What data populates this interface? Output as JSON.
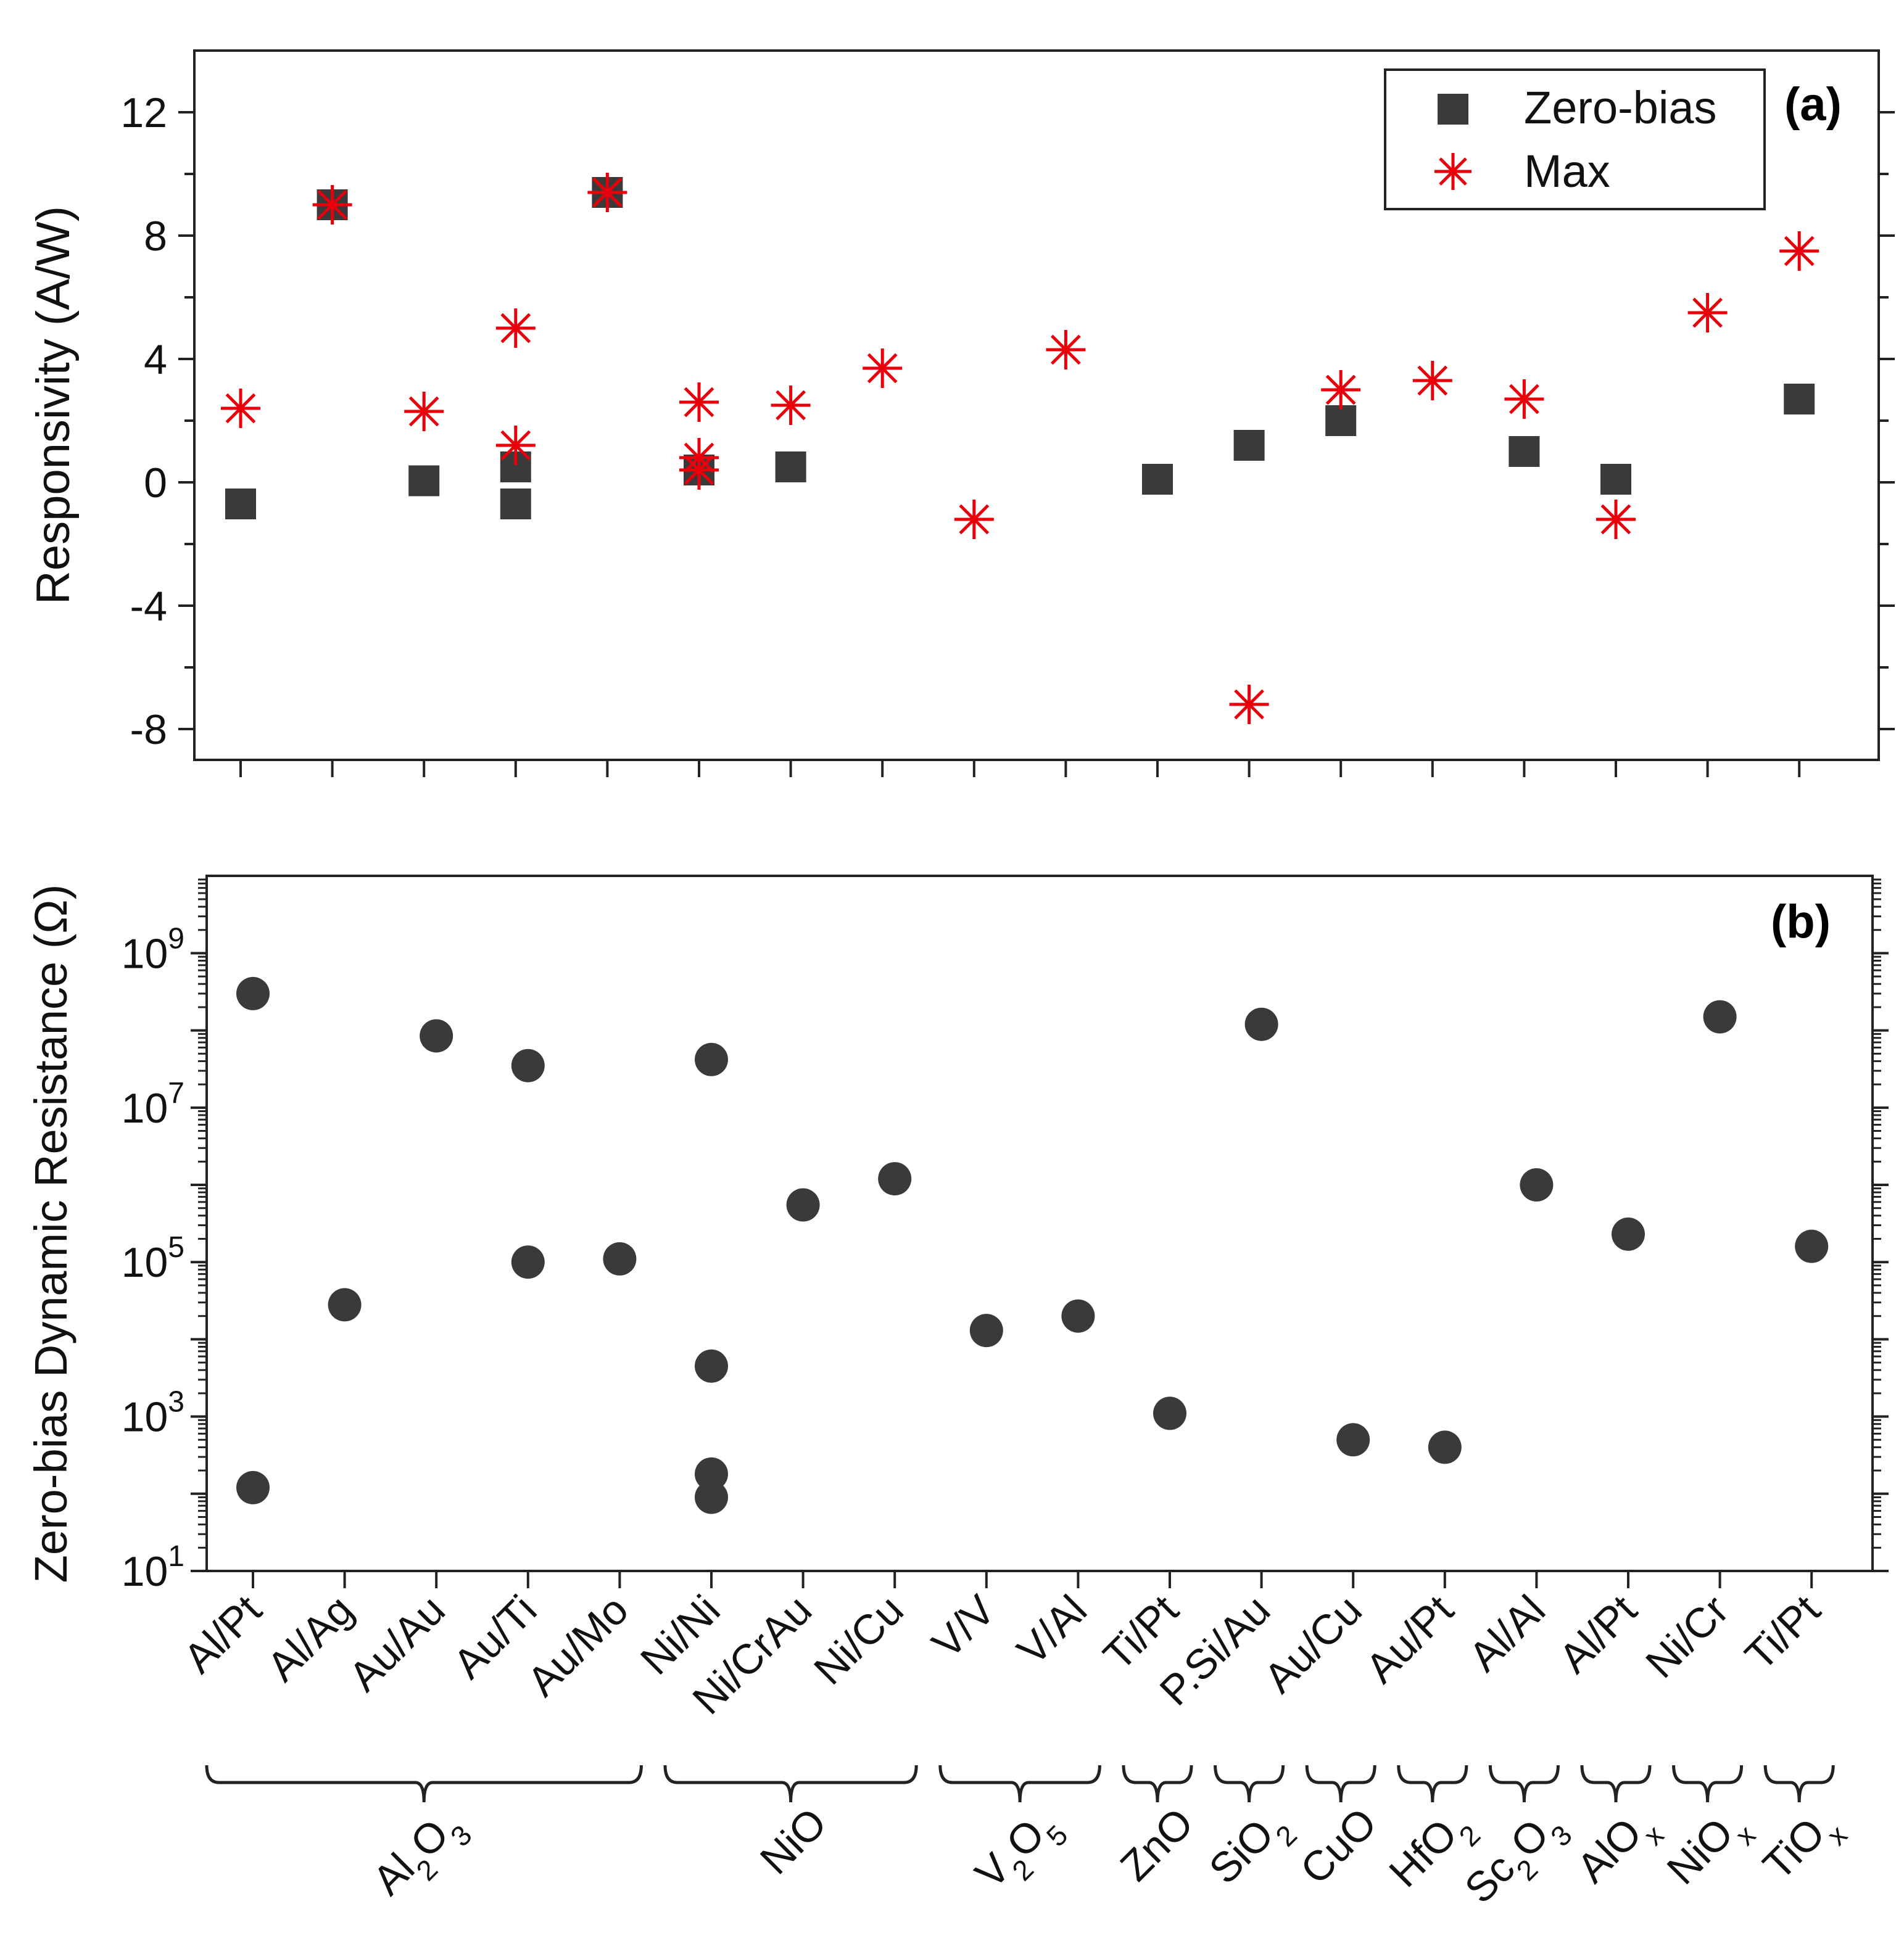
{
  "chart_data": [
    {
      "type": "scatter",
      "panel": "(a)",
      "ylabel": "Responsivity (A/W)",
      "ylim": [
        -9,
        14
      ],
      "yticks": [
        -8,
        -4,
        0,
        4,
        8,
        12
      ],
      "ytick_labels": [
        "-8",
        "-4",
        "0",
        "4",
        "8",
        "12"
      ],
      "legend": {
        "position": "top-right",
        "entries": [
          "Zero-bias",
          "Max"
        ]
      },
      "series": [
        {
          "name": "Zero-bias",
          "marker": "square",
          "color": "#3a3a3a",
          "points": [
            {
              "x": 0,
              "y": -0.7
            },
            {
              "x": 1,
              "y": 9.0
            },
            {
              "x": 2,
              "y": 0.05
            },
            {
              "x": 3,
              "y": 0.5
            },
            {
              "x": 3,
              "y": -0.7
            },
            {
              "x": 4,
              "y": 9.4
            },
            {
              "x": 5,
              "y": 0.4
            },
            {
              "x": 6,
              "y": 0.5
            },
            {
              "x": 10,
              "y": 0.1
            },
            {
              "x": 11,
              "y": 1.2
            },
            {
              "x": 12,
              "y": 2.0
            },
            {
              "x": 14,
              "y": 1.0
            },
            {
              "x": 15,
              "y": 0.1
            },
            {
              "x": 17,
              "y": 2.7
            }
          ]
        },
        {
          "name": "Max",
          "marker": "asterisk",
          "color": "#e8000b",
          "points": [
            {
              "x": 0,
              "y": 2.4
            },
            {
              "x": 1,
              "y": 9.0
            },
            {
              "x": 2,
              "y": 2.3
            },
            {
              "x": 3,
              "y": 5.0
            },
            {
              "x": 3,
              "y": 1.2
            },
            {
              "x": 4,
              "y": 9.4
            },
            {
              "x": 5,
              "y": 2.6
            },
            {
              "x": 5,
              "y": 0.8
            },
            {
              "x": 5,
              "y": 0.4
            },
            {
              "x": 6,
              "y": 2.5
            },
            {
              "x": 7,
              "y": 3.7
            },
            {
              "x": 8,
              "y": -1.2
            },
            {
              "x": 9,
              "y": 4.3
            },
            {
              "x": 11,
              "y": -7.2
            },
            {
              "x": 12,
              "y": 3.0
            },
            {
              "x": 13,
              "y": 3.3
            },
            {
              "x": 14,
              "y": 2.7
            },
            {
              "x": 15,
              "y": -1.2
            },
            {
              "x": 16,
              "y": 5.5
            },
            {
              "x": 17,
              "y": 7.5
            }
          ]
        }
      ]
    },
    {
      "type": "scatter",
      "panel": "(b)",
      "ylabel": "Zero-bias Dynamic Resistance (Ω)",
      "yscale": "log",
      "ylim_log10": [
        1,
        10
      ],
      "yticks_log10": [
        1,
        3,
        5,
        7,
        9
      ],
      "ytick_labels": [
        {
          "base": "10",
          "exp": "1"
        },
        {
          "base": "10",
          "exp": "3"
        },
        {
          "base": "10",
          "exp": "5"
        },
        {
          "base": "10",
          "exp": "7"
        },
        {
          "base": "10",
          "exp": "9"
        }
      ],
      "categories": [
        "Al/Pt",
        "Al/Ag",
        "Au/Au",
        "Au/Ti",
        "Au/Mo",
        "Ni/Ni",
        "Ni/CrAu",
        "Ni/Cu",
        "V/V",
        "V/Al",
        "Ti/Pt",
        "P.Si/Au",
        "Au/Cu",
        "Au/Pt",
        "Al/Al",
        "Al/Pt",
        "Ni/Cr",
        "Ti/Pt"
      ],
      "groups": [
        {
          "parts": [
            {
              "t": "Al"
            },
            {
              "t": "2",
              "s": "sub"
            },
            {
              "t": "O"
            },
            {
              "t": "3",
              "s": "sub"
            }
          ],
          "from": 0,
          "to": 4
        },
        {
          "parts": [
            {
              "t": "NiO"
            }
          ],
          "from": 5,
          "to": 7
        },
        {
          "parts": [
            {
              "t": "V"
            },
            {
              "t": "2",
              "s": "sub"
            },
            {
              "t": "O"
            },
            {
              "t": "5",
              "s": "sub"
            }
          ],
          "from": 8,
          "to": 9
        },
        {
          "parts": [
            {
              "t": "ZnO"
            }
          ],
          "from": 10,
          "to": 10
        },
        {
          "parts": [
            {
              "t": "SiO"
            },
            {
              "t": "2",
              "s": "sub"
            }
          ],
          "from": 11,
          "to": 11
        },
        {
          "parts": [
            {
              "t": "CuO"
            }
          ],
          "from": 12,
          "to": 12
        },
        {
          "parts": [
            {
              "t": "HfO"
            },
            {
              "t": "2",
              "s": "sub"
            }
          ],
          "from": 13,
          "to": 13
        },
        {
          "parts": [
            {
              "t": "Sc"
            },
            {
              "t": "2",
              "s": "sub"
            },
            {
              "t": "O"
            },
            {
              "t": "3",
              "s": "sub"
            }
          ],
          "from": 14,
          "to": 14
        },
        {
          "parts": [
            {
              "t": "AlO"
            },
            {
              "t": "x",
              "s": "sub"
            }
          ],
          "from": 15,
          "to": 15
        },
        {
          "parts": [
            {
              "t": "NiO"
            },
            {
              "t": "x",
              "s": "sub"
            }
          ],
          "from": 16,
          "to": 16
        },
        {
          "parts": [
            {
              "t": "TiO"
            },
            {
              "t": "x",
              "s": "sub"
            }
          ],
          "from": 17,
          "to": 17
        }
      ],
      "series": [
        {
          "name": "Zero-bias dynamic resistance",
          "marker": "circle",
          "color": "#3a3a3a",
          "points": [
            {
              "x": 0,
              "y": 300000000.0
            },
            {
              "x": 0,
              "y": 120.0
            },
            {
              "x": 1,
              "y": 28000.0
            },
            {
              "x": 2,
              "y": 85000000.0
            },
            {
              "x": 3,
              "y": 35000000.0
            },
            {
              "x": 3,
              "y": 100000.0
            },
            {
              "x": 4,
              "y": 110000.0
            },
            {
              "x": 5,
              "y": 42000000.0
            },
            {
              "x": 5,
              "y": 4500.0
            },
            {
              "x": 5,
              "y": 180.0
            },
            {
              "x": 5,
              "y": 90.0
            },
            {
              "x": 6,
              "y": 550000.0
            },
            {
              "x": 7,
              "y": 1200000.0
            },
            {
              "x": 8,
              "y": 13000.0
            },
            {
              "x": 9,
              "y": 20000.0
            },
            {
              "x": 10,
              "y": 1100.0
            },
            {
              "x": 11,
              "y": 120000000.0
            },
            {
              "x": 12,
              "y": 500.0
            },
            {
              "x": 13,
              "y": 400.0
            },
            {
              "x": 14,
              "y": 1000000.0
            },
            {
              "x": 15,
              "y": 230000.0
            },
            {
              "x": 16,
              "y": 150000000.0
            },
            {
              "x": 17,
              "y": 160000.0
            }
          ]
        }
      ]
    }
  ]
}
